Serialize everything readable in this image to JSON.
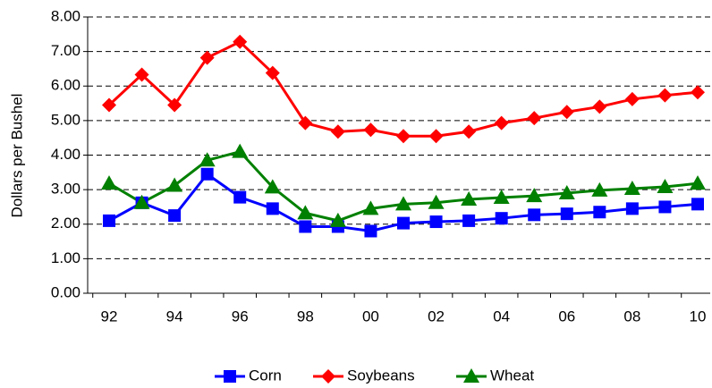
{
  "chart_data": {
    "type": "line",
    "y_label": "Dollars per Bushel",
    "categories": [
      "92",
      null,
      "94",
      null,
      "96",
      null,
      "98",
      null,
      "00",
      null,
      "02",
      null,
      "04",
      null,
      "06",
      null,
      "08",
      null,
      "10"
    ],
    "series": [
      {
        "name": "Corn",
        "color": "#0000ff",
        "marker": "square",
        "values": [
          2.1,
          2.62,
          2.25,
          3.45,
          2.78,
          2.45,
          1.93,
          1.93,
          1.8,
          2.03,
          2.07,
          2.1,
          2.17,
          2.27,
          2.3,
          2.35,
          2.45,
          2.5,
          2.58
        ]
      },
      {
        "name": "Soybeans",
        "color": "#ff0000",
        "marker": "diamond",
        "values": [
          5.45,
          6.33,
          5.45,
          6.82,
          7.28,
          6.38,
          4.93,
          4.68,
          4.73,
          4.55,
          4.55,
          4.68,
          4.93,
          5.07,
          5.25,
          5.4,
          5.62,
          5.73,
          5.82
        ]
      },
      {
        "name": "Wheat",
        "color": "#008000",
        "marker": "triangle",
        "values": [
          3.18,
          2.62,
          3.12,
          3.85,
          4.1,
          3.07,
          2.32,
          2.1,
          2.45,
          2.58,
          2.62,
          2.72,
          2.77,
          2.82,
          2.9,
          2.98,
          3.03,
          3.08,
          3.18
        ]
      }
    ],
    "ylim": [
      0,
      8
    ],
    "yticks": [
      {
        "value": 0,
        "label": "0.00"
      },
      {
        "value": 1,
        "label": "1.00"
      },
      {
        "value": 2,
        "label": "2.00"
      },
      {
        "value": 3,
        "label": "3.00"
      },
      {
        "value": 4,
        "label": "4.00"
      },
      {
        "value": 5,
        "label": "5.00"
      },
      {
        "value": 6,
        "label": "6.00"
      },
      {
        "value": 7,
        "label": "7.00"
      },
      {
        "value": 8,
        "label": "8.00"
      }
    ],
    "grid": true,
    "legend": "bottom"
  }
}
